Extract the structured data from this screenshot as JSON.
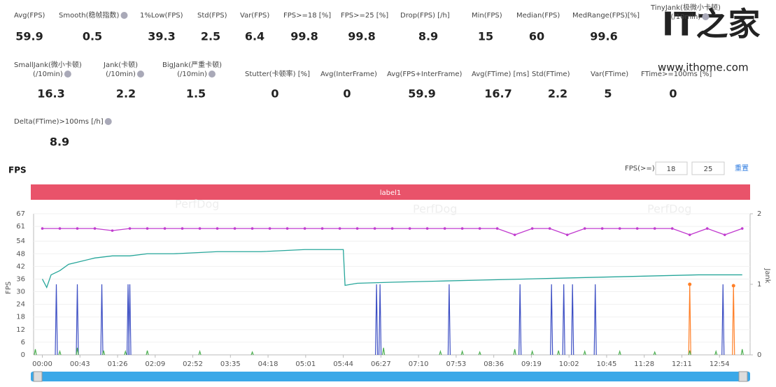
{
  "metrics": [
    {
      "label": [
        "Avg(FPS)"
      ],
      "value": 59.9
    },
    {
      "label": [
        "Smooth(稳帧指数)"
      ],
      "value": 0.5,
      "help": true
    },
    {
      "label": [
        "1%Low(FPS)"
      ],
      "value": 39.3
    },
    {
      "label": [
        "Std(FPS)"
      ],
      "value": 2.5
    },
    {
      "label": [
        "Var(FPS)"
      ],
      "value": 6.4
    },
    {
      "label": [
        "FPS>=18 [%]"
      ],
      "value": 99.8
    },
    {
      "label": [
        "FPS>=25 [%]"
      ],
      "value": 99.8
    },
    {
      "label": [
        "Drop(FPS) [/h]"
      ],
      "value": 8.9
    },
    {
      "label": [
        "Min(FPS)"
      ],
      "value": 15
    },
    {
      "label": [
        "Median(FPS)"
      ],
      "value": 60
    },
    {
      "label": [
        "MedRange(FPS)[%]"
      ],
      "value": 99.6
    },
    {
      "label": [
        "TinyJank(极微小卡顿)",
        "(/10min)"
      ],
      "help": true
    },
    {
      "label": [
        "SmallJank(微小卡顿)",
        "(/10min)"
      ],
      "value": 16.3,
      "help": true
    },
    {
      "label": [
        "Jank(卡顿)",
        "(/10min)"
      ],
      "value": 2.2,
      "help": true
    },
    {
      "label": [
        "BigJank(严重卡顿)",
        "(/10min)"
      ],
      "value": 1.5,
      "help": true
    },
    {
      "label": [
        "Stutter(卡顿率) [%]"
      ],
      "value": 0
    },
    {
      "label": [
        "Avg(InterFrame)"
      ],
      "value": 0
    },
    {
      "label": [
        "Avg(FPS+InterFrame)"
      ],
      "value": 59.9
    },
    {
      "label": [
        "Avg(FTime) [ms]"
      ],
      "value": 16.7
    },
    {
      "label": [
        "Std(FTime)"
      ],
      "value": 2.2
    },
    {
      "label": [
        "Var(FTime)"
      ],
      "value": 5
    },
    {
      "label": [
        "FTime>=100ms [%]"
      ],
      "value": 0
    },
    {
      "label": [
        "Delta(FTime)>100ms [/h]"
      ],
      "value": 8.9,
      "help": true
    }
  ],
  "watermark": {
    "logo": "IT之家",
    "url": "www.ithome.com"
  },
  "chart_data": {
    "type": "line",
    "title": "FPS",
    "threshold_label": "FPS(>=)",
    "thresholds": [
      18,
      25
    ],
    "reset": "重置",
    "band_label": "label1",
    "background_text": "PerfDog",
    "ylabel": "FPS",
    "y2label": "Jank",
    "xlim": [
      -10,
      809
    ],
    "xticks": [
      {
        "value": 0,
        "label": "00:00"
      },
      {
        "value": 43,
        "label": "00:43"
      },
      {
        "value": 86,
        "label": "01:26"
      },
      {
        "value": 129,
        "label": "02:09"
      },
      {
        "value": 172,
        "label": "02:52"
      },
      {
        "value": 215,
        "label": "03:35"
      },
      {
        "value": 258,
        "label": "04:18"
      },
      {
        "value": 301,
        "label": "05:01"
      },
      {
        "value": 344,
        "label": "05:44"
      },
      {
        "value": 387,
        "label": "06:27"
      },
      {
        "value": 430,
        "label": "07:10"
      },
      {
        "value": 473,
        "label": "07:53"
      },
      {
        "value": 516,
        "label": "08:36"
      },
      {
        "value": 559,
        "label": "09:19"
      },
      {
        "value": 602,
        "label": "10:02"
      },
      {
        "value": 645,
        "label": "10:45"
      },
      {
        "value": 688,
        "label": "11:28"
      },
      {
        "value": 731,
        "label": "12:11"
      },
      {
        "value": 774,
        "label": "12:54"
      }
    ],
    "ylim": [
      0,
      67
    ],
    "yticks": [
      0,
      6,
      12,
      18,
      24,
      30,
      36,
      42,
      48,
      54,
      61,
      67
    ],
    "y2lim": [
      0,
      2
    ],
    "y2ticks": [
      0,
      1,
      2
    ],
    "grid": true,
    "series": [
      {
        "color": "#c13ccf",
        "markers": true,
        "x": [
          0,
          20,
          40,
          60,
          80,
          100,
          120,
          140,
          160,
          180,
          200,
          220,
          240,
          260,
          280,
          300,
          320,
          340,
          360,
          380,
          400,
          420,
          440,
          460,
          480,
          500,
          520,
          540,
          560,
          580,
          600,
          620,
          640,
          660,
          680,
          700,
          720,
          740,
          760,
          780,
          800
        ],
        "values": [
          60,
          60,
          60,
          60,
          59,
          60,
          60,
          60,
          60,
          60,
          60,
          60,
          60,
          60,
          60,
          60,
          60,
          60,
          60,
          60,
          60,
          60,
          60,
          60,
          60,
          60,
          60,
          57,
          60,
          60,
          57,
          60,
          60,
          60,
          60,
          60,
          60,
          57,
          60,
          57,
          60
        ]
      },
      {
        "color": "#26a69a",
        "x": [
          0,
          5,
          10,
          20,
          30,
          40,
          60,
          80,
          100,
          120,
          150,
          200,
          250,
          300,
          340,
          344,
          346,
          360,
          400,
          450,
          500,
          550,
          600,
          650,
          700,
          750,
          800
        ],
        "values": [
          36,
          32,
          38,
          40,
          43,
          44,
          46,
          47,
          47,
          48,
          48,
          49,
          49,
          50,
          50,
          50,
          33,
          34,
          34.5,
          35,
          35.5,
          36,
          36.5,
          37,
          37.5,
          38,
          38
        ]
      },
      {
        "color": "#3d4fc4",
        "axis": "y2",
        "mark": "spike",
        "x": [
          16,
          40,
          68,
          98,
          100,
          382,
          386,
          465,
          546,
          582,
          596,
          606,
          632,
          778
        ],
        "values": [
          1,
          1,
          1,
          1,
          1,
          1,
          1,
          1,
          1,
          1,
          1,
          1,
          1,
          1
        ]
      },
      {
        "color": "#ff7f27",
        "axis": "y2",
        "mark": "spike",
        "markers": true,
        "x": [
          740,
          790
        ],
        "values": [
          1,
          0.98
        ]
      },
      {
        "color": "#4caf50",
        "axis": "y2",
        "mark": "spike",
        "x": [
          -8,
          20,
          40,
          70,
          95,
          120,
          180,
          240,
          390,
          455,
          480,
          500,
          540,
          560,
          590,
          620,
          660,
          700,
          740,
          770,
          800
        ],
        "values": [
          0.08,
          0.05,
          0.1,
          0.06,
          0.05,
          0.06,
          0.05,
          0.04,
          0.1,
          0.05,
          0.05,
          0.04,
          0.08,
          0.05,
          0.06,
          0.05,
          0.05,
          0.04,
          0.06,
          0.05,
          0.08
        ]
      }
    ]
  }
}
